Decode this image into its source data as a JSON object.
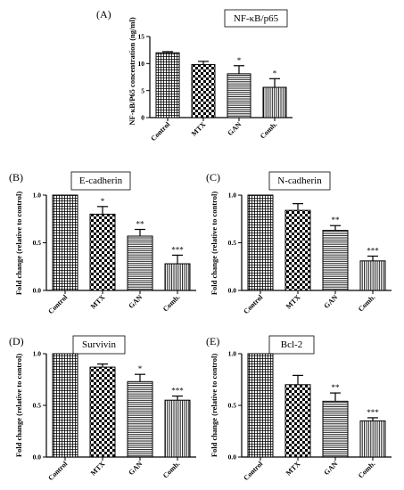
{
  "chart_data": [
    {
      "type": "bar",
      "panel_label": "(A)",
      "title": "NF-κB/p65",
      "ylabel": "NF-κB/P65 concentration (ng/ml)",
      "xlabel": "",
      "ylim": [
        0,
        15
      ],
      "yticks": [
        "0",
        "5",
        "10",
        "15"
      ],
      "categories": [
        "Control",
        "MTX",
        "GAN",
        "Comb."
      ],
      "values": [
        12.0,
        9.8,
        8.1,
        5.6
      ],
      "errors": [
        0.2,
        0.6,
        1.5,
        1.6
      ],
      "significance": [
        "",
        "",
        "*",
        "*"
      ],
      "patterns": [
        "grid",
        "checker",
        "hlines",
        "vlines"
      ]
    },
    {
      "type": "bar",
      "panel_label": "(B)",
      "title": "E-cadherin",
      "ylabel": "Fold change (relative to control)",
      "xlabel": "",
      "ylim": [
        0,
        1.0
      ],
      "yticks": [
        "0.0",
        "0.5",
        "1.0"
      ],
      "categories": [
        "Control",
        "MTX",
        "GAN",
        "Comb."
      ],
      "values": [
        1.0,
        0.8,
        0.57,
        0.28
      ],
      "errors": [
        0,
        0.08,
        0.07,
        0.09
      ],
      "significance": [
        "",
        "*",
        "**",
        "***"
      ],
      "patterns": [
        "grid",
        "checker",
        "hlines",
        "vlines"
      ]
    },
    {
      "type": "bar",
      "panel_label": "(C)",
      "title": "N-cadherin",
      "ylabel": "Fold change (relative to control)",
      "xlabel": "",
      "ylim": [
        0,
        1.0
      ],
      "yticks": [
        "0.0",
        "0.5",
        "1.0"
      ],
      "categories": [
        "Control",
        "MTX",
        "GAN",
        "Comb."
      ],
      "values": [
        1.0,
        0.84,
        0.63,
        0.31
      ],
      "errors": [
        0,
        0.07,
        0.05,
        0.05
      ],
      "significance": [
        "",
        "",
        "**",
        "***"
      ],
      "patterns": [
        "grid",
        "checker",
        "hlines",
        "vlines"
      ]
    },
    {
      "type": "bar",
      "panel_label": "(D)",
      "title": "Survivin",
      "ylabel": "Fold change (relative to control)",
      "xlabel": "",
      "ylim": [
        0,
        1.0
      ],
      "yticks": [
        "0.0",
        "0.5",
        "1.0"
      ],
      "categories": [
        "Control",
        "MTX",
        "GAN",
        "Comb."
      ],
      "values": [
        1.0,
        0.87,
        0.73,
        0.55
      ],
      "errors": [
        0,
        0.03,
        0.07,
        0.04
      ],
      "significance": [
        "",
        "",
        "*",
        "***"
      ],
      "patterns": [
        "grid",
        "checker",
        "hlines",
        "vlines"
      ]
    },
    {
      "type": "bar",
      "panel_label": "(E)",
      "title": "Bcl-2",
      "ylabel": "Fold change (relative to control)",
      "xlabel": "",
      "ylim": [
        0,
        1.0
      ],
      "yticks": [
        "0.0",
        "0.5",
        "1.0"
      ],
      "categories": [
        "Control",
        "MTX",
        "GAN",
        "Comb."
      ],
      "values": [
        1.0,
        0.7,
        0.54,
        0.35
      ],
      "errors": [
        0,
        0.09,
        0.08,
        0.03
      ],
      "significance": [
        "",
        "",
        "**",
        "***"
      ],
      "patterns": [
        "grid",
        "checker",
        "hlines",
        "vlines"
      ]
    }
  ]
}
